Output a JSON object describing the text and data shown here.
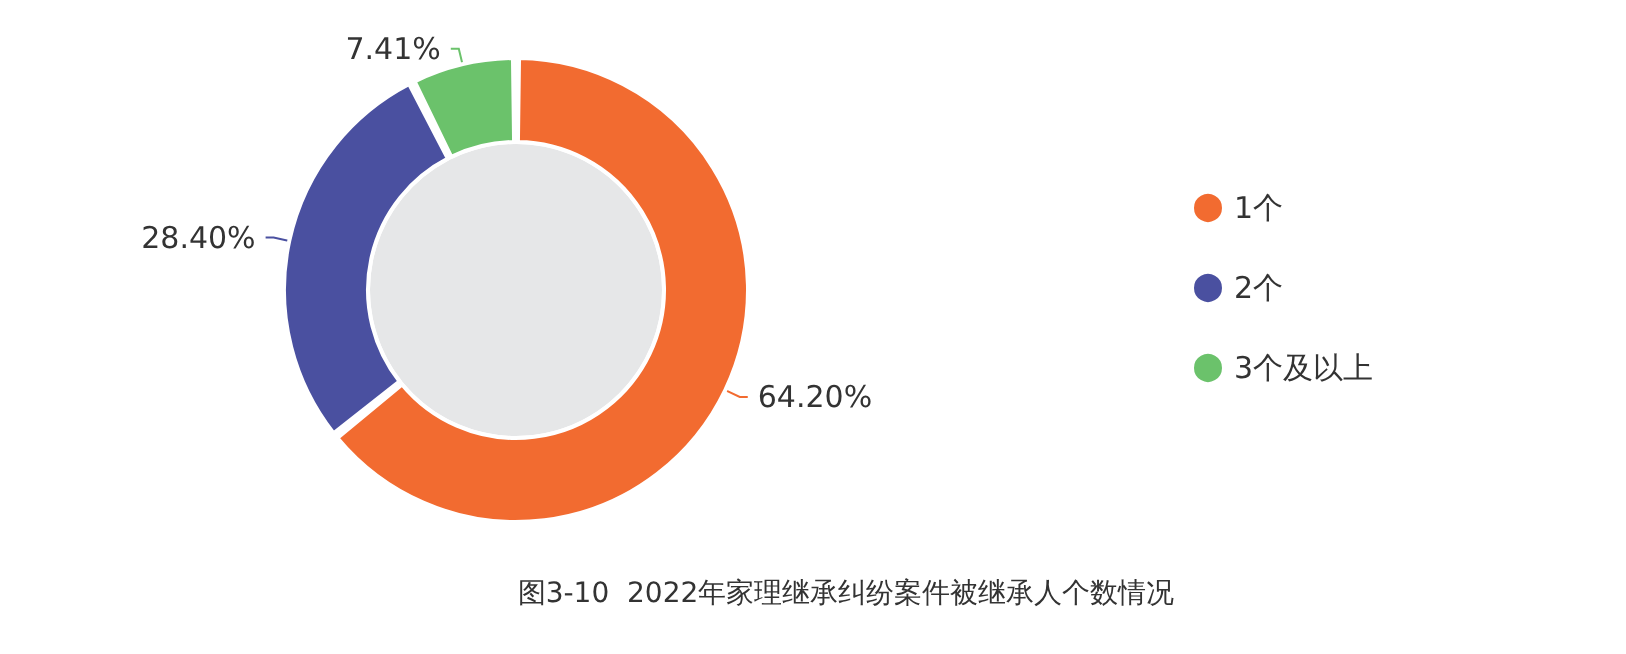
{
  "chart_data": {
    "type": "donut",
    "title": "图3-10  2022年家理继承纠纷案件被继承人个数情况",
    "categories": [
      "1个",
      "2个",
      "3个及以上"
    ],
    "values": [
      64.2,
      28.4,
      7.41
    ],
    "colors": [
      "#f26b30",
      "#4a50a0",
      "#6bc26b"
    ],
    "value_labels": [
      "64.20%",
      "28.40%",
      "7.41%"
    ],
    "legend": "right"
  }
}
